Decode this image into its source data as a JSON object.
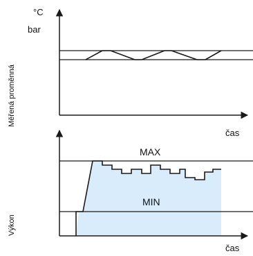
{
  "diagram": {
    "top_panel": {
      "unit_line_1": "°C",
      "unit_line_2": "bar",
      "ylabel": "Měřená proměnná",
      "xlabel": "čas"
    },
    "bottom_panel": {
      "ylabel": "Výkon",
      "xlabel": "čas",
      "max_label": "MAX",
      "min_label": "MIN"
    }
  },
  "colors": {
    "line": "#1a1a1a",
    "fill": "#d9ecfb"
  }
}
